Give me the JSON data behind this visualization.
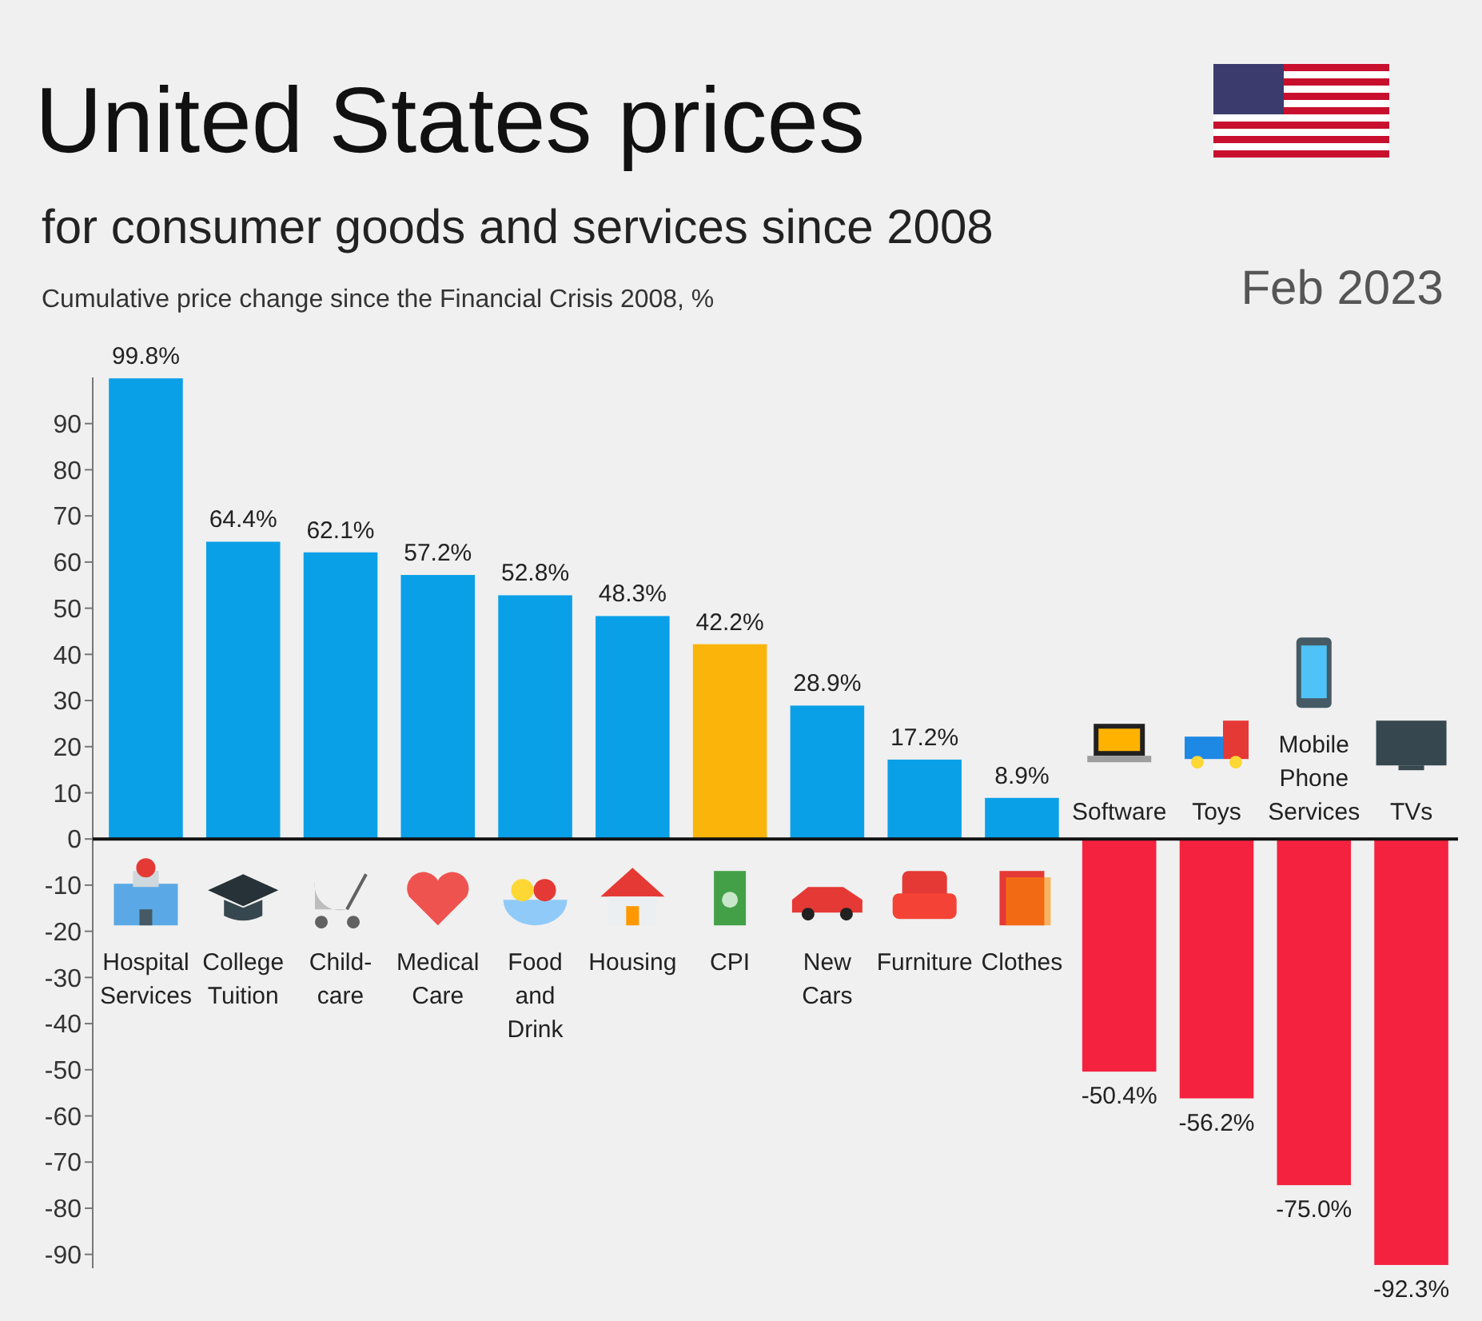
{
  "chart_data": {
    "type": "bar",
    "title": "United States prices",
    "subtitle": "for consumer goods and services since 2008",
    "ylabel": "Cumulative price change since the Financial Crisis 2008, %",
    "annotations": [
      "Feb 2023"
    ],
    "categories": [
      "Hospital Services",
      "College Tuition",
      "Child-care",
      "Medical Care",
      "Food and Drink",
      "Housing",
      "CPI",
      "New Cars",
      "Furniture",
      "Clothes",
      "Software",
      "Toys",
      "Mobile Phone Services",
      "TVs"
    ],
    "values": [
      99.8,
      64.4,
      62.1,
      57.2,
      52.8,
      48.3,
      42.2,
      28.9,
      17.2,
      8.9,
      -50.4,
      -56.2,
      -75.0,
      -92.3
    ],
    "value_labels": [
      "99.8%",
      "64.4%",
      "62.1%",
      "57.2%",
      "52.8%",
      "48.3%",
      "42.2%",
      "28.9%",
      "17.2%",
      "8.9%",
      "-50.4%",
      "-56.2%",
      "-75.0%",
      "-92.3%"
    ],
    "colors": [
      "#0aa0e8",
      "#0aa0e8",
      "#0aa0e8",
      "#0aa0e8",
      "#0aa0e8",
      "#0aa0e8",
      "#fbb40a",
      "#0aa0e8",
      "#0aa0e8",
      "#0aa0e8",
      "#f5223f",
      "#f5223f",
      "#f5223f",
      "#f5223f"
    ],
    "ylim": [
      -93,
      100
    ],
    "yticks": [
      -90,
      -80,
      -70,
      -60,
      -50,
      -40,
      -30,
      -20,
      -10,
      0,
      10,
      20,
      30,
      40,
      50,
      60,
      70,
      80,
      90
    ]
  }
}
